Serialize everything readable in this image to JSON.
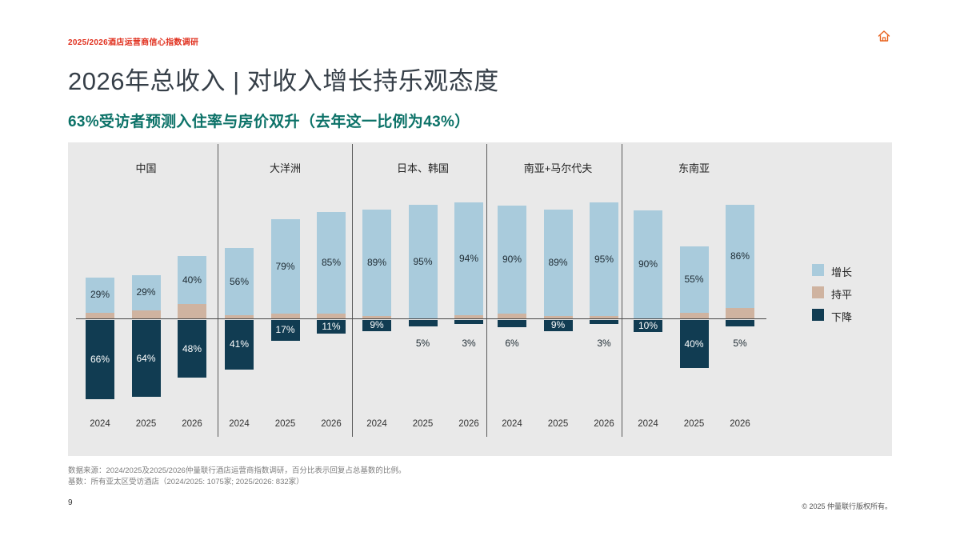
{
  "header": {
    "eyebrow": "2025/2026酒店运营商信心指数调研"
  },
  "title": "2026年总收入 | 对收入增长持乐观态度",
  "subtitle": "63%受访者预测入住率与房价双升（去年这一比例为43%）",
  "colors": {
    "accent_red": "#E0301E",
    "accent_teal": "#0C7268",
    "icon_orange": "#E8611C",
    "chart_bg": "#E9E9E9",
    "increase": "#A9CBDC",
    "flat": "#CFB3A0",
    "decrease": "#113C52"
  },
  "chart_data": {
    "type": "bar",
    "variant": "diverging-stacked",
    "unit": "%",
    "ylim": [
      -100,
      100
    ],
    "grid": false,
    "legend_position": "right",
    "years": [
      "2024",
      "2025",
      "2026"
    ],
    "legend": [
      {
        "key": "up",
        "label": "增长",
        "color": "#A9CBDC"
      },
      {
        "key": "flat",
        "label": "持平",
        "color": "#CFB3A0"
      },
      {
        "key": "down",
        "label": "下降",
        "color": "#113C52"
      }
    ],
    "groups": [
      {
        "region": "中国",
        "bars": [
          {
            "year": "2024",
            "up": 29,
            "flat": 5,
            "down": 66
          },
          {
            "year": "2025",
            "up": 29,
            "flat": 7,
            "down": 64
          },
          {
            "year": "2026",
            "up": 40,
            "flat": 12,
            "down": 48
          }
        ]
      },
      {
        "region": "大洋洲",
        "bars": [
          {
            "year": "2024",
            "up": 56,
            "flat": 3,
            "down": 41
          },
          {
            "year": "2025",
            "up": 79,
            "flat": 4,
            "down": 17
          },
          {
            "year": "2026",
            "up": 85,
            "flat": 4,
            "down": 11
          }
        ]
      },
      {
        "region": "日本、韩国",
        "bars": [
          {
            "year": "2024",
            "up": 89,
            "flat": 2,
            "down": 9
          },
          {
            "year": "2025",
            "up": 95,
            "flat": 0,
            "down": 5
          },
          {
            "year": "2026",
            "up": 94,
            "flat": 3,
            "down": 3
          }
        ]
      },
      {
        "region": "南亚+马尔代夫",
        "bars": [
          {
            "year": "2024",
            "up": 90,
            "flat": 4,
            "down": 6
          },
          {
            "year": "2025",
            "up": 89,
            "flat": 2,
            "down": 9
          },
          {
            "year": "2026",
            "up": 95,
            "flat": 2,
            "down": 3
          }
        ]
      },
      {
        "region": "东南亚",
        "bars": [
          {
            "year": "2024",
            "up": 90,
            "flat": 0,
            "down": 10
          },
          {
            "year": "2025",
            "up": 55,
            "flat": 5,
            "down": 40
          },
          {
            "year": "2026",
            "up": 86,
            "flat": 9,
            "down": 5
          }
        ]
      }
    ]
  },
  "footer": {
    "source_line1": "数据来源：2024/2025及2025/2026仲量联行酒店运营商指数调研，百分比表示回复占总基数的比例。",
    "source_line2": "基数：所有亚太区受访酒店（2024/2025: 1075家; 2025/2026: 832家）",
    "page_number": "9",
    "copyright": "© 2025 仲量联行版权所有。"
  }
}
